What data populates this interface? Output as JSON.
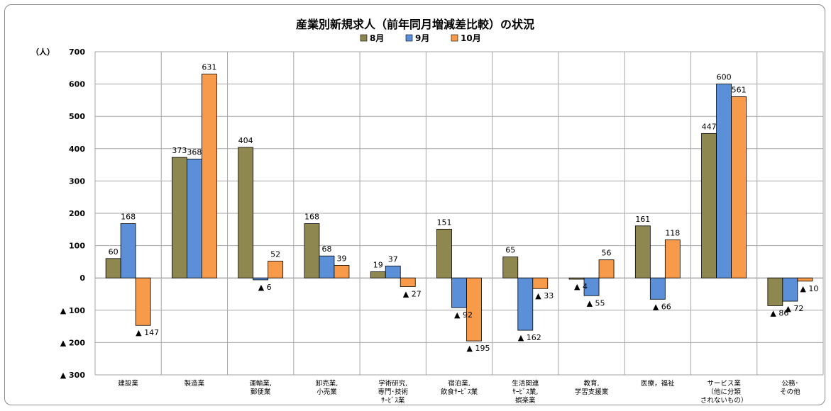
{
  "chart_data": {
    "type": "bar",
    "title": "産業別新規求人（前年同月増減差比較）の状況",
    "ylabel": "（人）",
    "ylim": [
      -300,
      700
    ],
    "yticks": [
      700,
      600,
      500,
      400,
      300,
      200,
      100,
      0,
      -100,
      -200,
      -300
    ],
    "ytick_labels": [
      "700",
      "600",
      "500",
      "400",
      "300",
      "200",
      "100",
      "0",
      "▲ 100",
      "▲ 200",
      "▲ 300"
    ],
    "grid": true,
    "legend_position": "top-center",
    "categories": [
      [
        "建設業"
      ],
      [
        "製造業"
      ],
      [
        "運輸業,",
        "郵便業"
      ],
      [
        "卸売業,",
        "小売業"
      ],
      [
        "学術研究,",
        "専門･技術",
        "ｻｰﾋﾞｽ業"
      ],
      [
        "宿泊業,",
        "飲食ｻｰﾋﾞｽ業"
      ],
      [
        "生活関連",
        "ｻｰﾋﾞｽ業,",
        "娯楽業"
      ],
      [
        "教育,",
        "学習支援業"
      ],
      [
        "医療，福祉"
      ],
      [
        "サービス業",
        "（他に分類",
        "されないもの）"
      ],
      [
        "公務･",
        "その他"
      ]
    ],
    "series": [
      {
        "name": "8月",
        "color": "#8f8750",
        "values": [
          60,
          373,
          404,
          168,
          19,
          151,
          65,
          -4,
          161,
          447,
          -86
        ],
        "labels": [
          "60",
          "373",
          "404",
          "168",
          "19",
          "151",
          "65",
          "▲ 4",
          "161",
          "447",
          "▲ 86"
        ]
      },
      {
        "name": "9月",
        "color": "#5b8fd8",
        "values": [
          168,
          368,
          -6,
          68,
          37,
          -92,
          -162,
          -55,
          -66,
          600,
          -72
        ],
        "labels": [
          "168",
          "368",
          "▲ 6",
          "68",
          "37",
          "▲ 92",
          "▲ 162",
          "▲ 55",
          "▲ 66",
          "600",
          "▲ 72"
        ]
      },
      {
        "name": "10月",
        "color": "#f79a4a",
        "values": [
          -147,
          631,
          52,
          39,
          -27,
          -195,
          -33,
          56,
          118,
          561,
          -10
        ],
        "labels": [
          "▲ 147",
          "631",
          "52",
          "39",
          "▲ 27",
          "▲ 195",
          "▲ 33",
          "56",
          "118",
          "561",
          "▲ 10"
        ]
      }
    ]
  }
}
